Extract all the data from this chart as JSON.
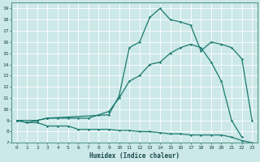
{
  "xlabel": "Humidex (Indice chaleur)",
  "bg_color": "#cce8e8",
  "grid_color": "#ffffff",
  "line_color": "#1a7a6e",
  "xlim": [
    -0.5,
    23.5
  ],
  "ylim": [
    7,
    19.5
  ],
  "yticks": [
    7,
    8,
    9,
    10,
    11,
    12,
    13,
    14,
    15,
    16,
    17,
    18,
    19
  ],
  "xticks": [
    0,
    1,
    2,
    3,
    4,
    5,
    6,
    7,
    8,
    9,
    10,
    11,
    12,
    13,
    14,
    15,
    16,
    17,
    18,
    19,
    20,
    21,
    22,
    23
  ],
  "curve1_x": [
    0,
    1,
    2,
    3,
    4,
    5,
    6,
    7,
    8,
    9,
    10,
    11,
    12,
    13,
    14,
    15,
    16,
    17,
    18,
    19,
    20,
    21,
    22,
    23
  ],
  "curve1_y": [
    9.0,
    8.8,
    8.8,
    8.5,
    8.5,
    8.5,
    8.2,
    8.2,
    8.2,
    8.2,
    8.1,
    8.1,
    8.0,
    8.0,
    7.9,
    7.8,
    7.8,
    7.7,
    7.7,
    7.7,
    7.7,
    7.5,
    7.2,
    7.0
  ],
  "curve2_x": [
    0,
    1,
    2,
    3,
    4,
    5,
    6,
    7,
    8,
    9,
    10,
    11,
    12,
    13,
    14,
    15,
    16,
    17,
    18,
    19,
    20,
    21,
    22
  ],
  "curve2_y": [
    9.0,
    8.8,
    9.0,
    9.2,
    9.2,
    9.2,
    9.2,
    9.2,
    9.5,
    9.8,
    11.0,
    12.5,
    13.0,
    14.0,
    14.2,
    15.0,
    15.5,
    15.8,
    15.5,
    14.2,
    12.5,
    9.0,
    7.5
  ],
  "curve3_x": [
    0,
    2,
    3,
    9,
    10,
    11,
    12,
    13,
    14,
    15,
    16,
    17,
    18,
    19,
    20,
    21,
    22,
    23
  ],
  "curve3_y": [
    9.0,
    9.0,
    9.2,
    9.5,
    11.2,
    15.5,
    16.0,
    18.2,
    19.0,
    18.0,
    17.8,
    17.5,
    15.2,
    16.0,
    15.8,
    15.5,
    14.5,
    9.0
  ]
}
